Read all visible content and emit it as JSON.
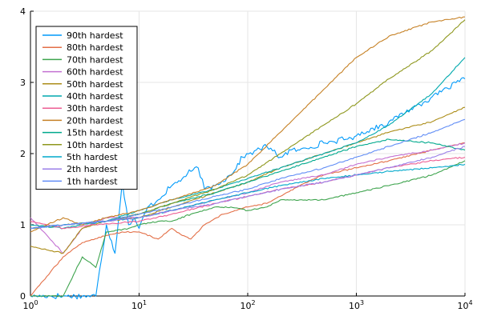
{
  "chart_data": {
    "type": "line",
    "title": "",
    "xlabel": "",
    "ylabel": "",
    "xscale": "log10",
    "xlim": [
      1,
      10000
    ],
    "ylim": [
      0,
      4
    ],
    "grid": true,
    "legend_position": "top-left",
    "x_ticks": [
      {
        "value": 1,
        "base": "10",
        "exp": "0"
      },
      {
        "value": 10,
        "base": "10",
        "exp": "1"
      },
      {
        "value": 100,
        "base": "10",
        "exp": "2"
      },
      {
        "value": 1000,
        "base": "10",
        "exp": "3"
      },
      {
        "value": 10000,
        "base": "10",
        "exp": "4"
      }
    ],
    "y_ticks": [
      {
        "value": 0,
        "label": "0"
      },
      {
        "value": 1,
        "label": "1"
      },
      {
        "value": 2,
        "label": "2"
      },
      {
        "value": 3,
        "label": "3"
      },
      {
        "value": 4,
        "label": "4"
      }
    ],
    "series": [
      {
        "name": "90th hardest",
        "color": "#009AFA",
        "jitter": 0.05,
        "points": [
          [
            1,
            0
          ],
          [
            2,
            0
          ],
          [
            3,
            0
          ],
          [
            4,
            0
          ],
          [
            5,
            1.0
          ],
          [
            6,
            0.6
          ],
          [
            7,
            1.6
          ],
          [
            8,
            1.0
          ],
          [
            9,
            1.1
          ],
          [
            10,
            0.95
          ],
          [
            12,
            1.25
          ],
          [
            15,
            1.35
          ],
          [
            20,
            1.55
          ],
          [
            25,
            1.65
          ],
          [
            30,
            1.75
          ],
          [
            35,
            1.8
          ],
          [
            40,
            1.5
          ],
          [
            50,
            1.55
          ],
          [
            70,
            1.7
          ],
          [
            90,
            1.95
          ],
          [
            120,
            2.05
          ],
          [
            150,
            2.1
          ],
          [
            200,
            1.95
          ],
          [
            250,
            2.05
          ],
          [
            300,
            2.05
          ],
          [
            500,
            2.15
          ],
          [
            800,
            2.2
          ],
          [
            1000,
            2.25
          ],
          [
            2000,
            2.45
          ],
          [
            5000,
            2.8
          ],
          [
            10000,
            3.05
          ]
        ]
      },
      {
        "name": "80th hardest",
        "color": "#E36F47",
        "points": [
          [
            1,
            0
          ],
          [
            2,
            0.55
          ],
          [
            3,
            0.75
          ],
          [
            5,
            0.85
          ],
          [
            7,
            0.9
          ],
          [
            10,
            0.9
          ],
          [
            15,
            0.8
          ],
          [
            20,
            0.95
          ],
          [
            25,
            0.85
          ],
          [
            30,
            0.8
          ],
          [
            40,
            1.0
          ],
          [
            60,
            1.15
          ],
          [
            100,
            1.25
          ],
          [
            150,
            1.3
          ],
          [
            200,
            1.4
          ],
          [
            300,
            1.55
          ],
          [
            500,
            1.7
          ],
          [
            1000,
            1.8
          ],
          [
            2000,
            1.9
          ],
          [
            5000,
            2.05
          ],
          [
            10000,
            2.15
          ]
        ]
      },
      {
        "name": "70th hardest",
        "color": "#3EA44E",
        "points": [
          [
            1,
            0
          ],
          [
            2,
            0
          ],
          [
            3,
            0.55
          ],
          [
            4,
            0.4
          ],
          [
            5,
            0.9
          ],
          [
            8,
            0.95
          ],
          [
            10,
            1.0
          ],
          [
            15,
            1.05
          ],
          [
            20,
            1.05
          ],
          [
            30,
            1.15
          ],
          [
            50,
            1.25
          ],
          [
            70,
            1.25
          ],
          [
            100,
            1.2
          ],
          [
            150,
            1.25
          ],
          [
            200,
            1.35
          ],
          [
            300,
            1.35
          ],
          [
            500,
            1.35
          ],
          [
            1000,
            1.45
          ],
          [
            2000,
            1.55
          ],
          [
            5000,
            1.7
          ],
          [
            10000,
            1.9
          ]
        ]
      },
      {
        "name": "60th hardest",
        "color": "#C371D2",
        "points": [
          [
            1,
            1.1
          ],
          [
            2,
            0.6
          ],
          [
            3,
            0.95
          ],
          [
            5,
            1.1
          ],
          [
            10,
            1.1
          ],
          [
            20,
            1.2
          ],
          [
            50,
            1.35
          ],
          [
            100,
            1.45
          ],
          [
            200,
            1.6
          ],
          [
            500,
            1.7
          ],
          [
            1000,
            1.85
          ],
          [
            2000,
            1.95
          ],
          [
            5000,
            2.05
          ],
          [
            10000,
            2.15
          ]
        ]
      },
      {
        "name": "50th hardest",
        "color": "#AC8D18",
        "points": [
          [
            1,
            0.7
          ],
          [
            2,
            0.6
          ],
          [
            3,
            0.95
          ],
          [
            5,
            1.05
          ],
          [
            10,
            1.1
          ],
          [
            20,
            1.25
          ],
          [
            50,
            1.45
          ],
          [
            100,
            1.6
          ],
          [
            200,
            1.8
          ],
          [
            500,
            2.0
          ],
          [
            1000,
            2.15
          ],
          [
            2000,
            2.3
          ],
          [
            5000,
            2.45
          ],
          [
            10000,
            2.65
          ]
        ]
      },
      {
        "name": "40th hardest",
        "color": "#00A9AD",
        "points": [
          [
            1,
            1.0
          ],
          [
            2,
            0.95
          ],
          [
            3,
            1.0
          ],
          [
            5,
            1.05
          ],
          [
            10,
            1.2
          ],
          [
            20,
            1.35
          ],
          [
            50,
            1.5
          ],
          [
            100,
            1.65
          ],
          [
            200,
            1.8
          ],
          [
            500,
            2.0
          ],
          [
            1000,
            2.15
          ],
          [
            2000,
            2.4
          ],
          [
            5000,
            2.85
          ],
          [
            10000,
            3.35
          ]
        ]
      },
      {
        "name": "30th hardest",
        "color": "#ED5E93",
        "points": [
          [
            1,
            1.05
          ],
          [
            2,
            0.95
          ],
          [
            4,
            1.0
          ],
          [
            10,
            1.05
          ],
          [
            20,
            1.15
          ],
          [
            50,
            1.3
          ],
          [
            100,
            1.4
          ],
          [
            200,
            1.5
          ],
          [
            500,
            1.6
          ],
          [
            1000,
            1.7
          ],
          [
            2000,
            1.8
          ],
          [
            5000,
            1.9
          ],
          [
            10000,
            1.95
          ]
        ]
      },
      {
        "name": "20th hardest",
        "color": "#C68125",
        "points": [
          [
            1,
            0.9
          ],
          [
            2,
            1.1
          ],
          [
            3,
            1.0
          ],
          [
            5,
            1.1
          ],
          [
            10,
            1.2
          ],
          [
            20,
            1.35
          ],
          [
            50,
            1.55
          ],
          [
            100,
            1.85
          ],
          [
            200,
            2.3
          ],
          [
            500,
            2.9
          ],
          [
            1000,
            3.35
          ],
          [
            2000,
            3.65
          ],
          [
            5000,
            3.85
          ],
          [
            10000,
            3.92
          ]
        ]
      },
      {
        "name": "15th hardest",
        "color": "#00A98D",
        "points": [
          [
            1,
            0.95
          ],
          [
            2,
            1.0
          ],
          [
            5,
            1.05
          ],
          [
            10,
            1.15
          ],
          [
            20,
            1.3
          ],
          [
            50,
            1.45
          ],
          [
            100,
            1.6
          ],
          [
            200,
            1.75
          ],
          [
            500,
            1.95
          ],
          [
            1000,
            2.1
          ],
          [
            2000,
            2.2
          ],
          [
            5000,
            2.15
          ],
          [
            10000,
            2.05
          ]
        ]
      },
      {
        "name": "10th hardest",
        "color": "#8E971D",
        "points": [
          [
            1,
            0.95
          ],
          [
            2,
            1.0
          ],
          [
            5,
            1.05
          ],
          [
            10,
            1.15
          ],
          [
            20,
            1.3
          ],
          [
            50,
            1.5
          ],
          [
            100,
            1.7
          ],
          [
            200,
            2.0
          ],
          [
            500,
            2.4
          ],
          [
            1000,
            2.7
          ],
          [
            2000,
            3.05
          ],
          [
            5000,
            3.45
          ],
          [
            10000,
            3.88
          ]
        ]
      },
      {
        "name": "5th hardest",
        "color": "#00A8CB",
        "points": [
          [
            1,
            0.95
          ],
          [
            2,
            1.0
          ],
          [
            5,
            1.05
          ],
          [
            10,
            1.1
          ],
          [
            20,
            1.2
          ],
          [
            50,
            1.35
          ],
          [
            100,
            1.45
          ],
          [
            200,
            1.55
          ],
          [
            500,
            1.65
          ],
          [
            1000,
            1.7
          ],
          [
            2000,
            1.75
          ],
          [
            5000,
            1.8
          ],
          [
            10000,
            1.85
          ]
        ]
      },
      {
        "name": "2th hardest",
        "color": "#9B7FE9",
        "points": [
          [
            1,
            0.95
          ],
          [
            2,
            1.0
          ],
          [
            5,
            1.05
          ],
          [
            10,
            1.1
          ],
          [
            20,
            1.2
          ],
          [
            50,
            1.3
          ],
          [
            100,
            1.4
          ],
          [
            200,
            1.5
          ],
          [
            500,
            1.6
          ],
          [
            1000,
            1.7
          ],
          [
            2000,
            1.8
          ],
          [
            5000,
            1.95
          ],
          [
            10000,
            2.1
          ]
        ]
      },
      {
        "name": "1th hardest",
        "color": "#618DF6",
        "points": [
          [
            1,
            0.95
          ],
          [
            2,
            1.0
          ],
          [
            5,
            1.05
          ],
          [
            10,
            1.15
          ],
          [
            20,
            1.25
          ],
          [
            50,
            1.4
          ],
          [
            100,
            1.5
          ],
          [
            200,
            1.65
          ],
          [
            500,
            1.8
          ],
          [
            1000,
            1.95
          ],
          [
            2000,
            2.1
          ],
          [
            5000,
            2.3
          ],
          [
            10000,
            2.48
          ]
        ]
      }
    ]
  }
}
